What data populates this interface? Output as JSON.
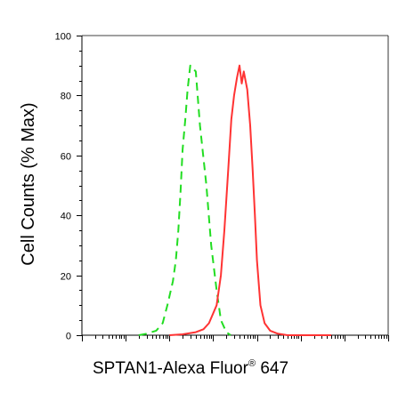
{
  "chart_data": {
    "type": "line",
    "title": "",
    "ylabel": "Cell Counts (% Max)",
    "xlabel": {
      "main": "SPTAN1-Alexa Fluor",
      "superscript": "®",
      "suffix": " 647"
    },
    "ylim": [
      0,
      100
    ],
    "yticks": [
      "0",
      "20",
      "40",
      "60",
      "80",
      "100"
    ],
    "xscale": "log",
    "xlim": [
      1,
      10000000
    ],
    "grid": false,
    "legend": "none",
    "series": [
      {
        "style": "dashed",
        "color": "#22dd22",
        "x": [
          20,
          30,
          50,
          70,
          90,
          120,
          140,
          160,
          180,
          200,
          230,
          260,
          300,
          400,
          500,
          700,
          900,
          1200,
          1500,
          2000,
          2500
        ],
        "y": [
          0,
          0.5,
          1.5,
          4,
          10,
          18,
          25,
          35,
          48,
          62,
          72,
          82,
          90,
          88,
          70,
          50,
          30,
          15,
          5,
          1,
          0
        ]
      },
      {
        "style": "solid",
        "color": "#ff3333",
        "x": [
          100,
          200,
          400,
          600,
          800,
          1200,
          1500,
          1800,
          2200,
          2600,
          3000,
          3500,
          4000,
          4500,
          5000,
          6000,
          7000,
          8000,
          9000,
          10000,
          12000,
          15000,
          20000,
          30000,
          50000,
          100000,
          500000
        ],
        "y": [
          0,
          0.3,
          1,
          2,
          4,
          10,
          20,
          35,
          55,
          72,
          80,
          86,
          90,
          84,
          88,
          82,
          70,
          55,
          40,
          25,
          10,
          4,
          1.5,
          0.5,
          0,
          0,
          0
        ]
      }
    ]
  }
}
